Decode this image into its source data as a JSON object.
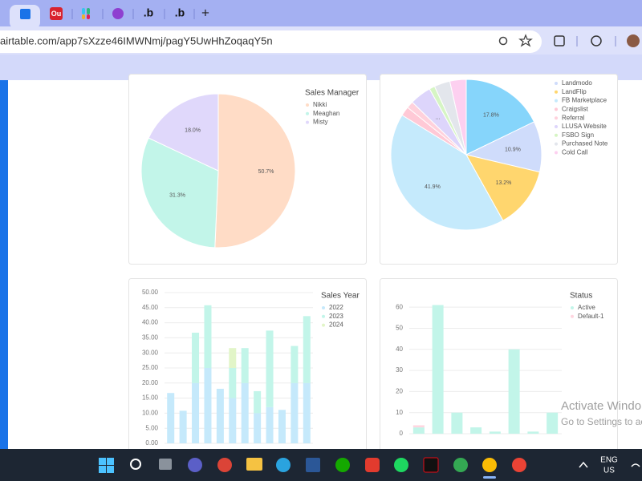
{
  "browser": {
    "tabs": [
      "Ou",
      ".b",
      ".b"
    ],
    "new_tab": "+",
    "url": "airtable.com/app7sXzze46IMWNmj/pagY5UwHhZoqaqY5n"
  },
  "chart_data": [
    {
      "type": "pie",
      "legend_title": "Sales Manager",
      "categories": [
        "Nikki",
        "Meaghan",
        "Misty"
      ],
      "values": [
        50.7,
        31.3,
        18.0
      ],
      "value_labels": [
        "50.7%",
        "31.3%",
        "18.0%"
      ],
      "colors": [
        "#ffdcc6",
        "#c2f5e9",
        "#e0d8fb"
      ]
    },
    {
      "type": "pie",
      "categories": [
        null,
        "Landmodo",
        "LandFlip",
        "FB Marketplace",
        "Craigslist",
        "Referral",
        "LLUSA Website",
        "FSBO Sign",
        "Purchased Note",
        "Cold Call"
      ],
      "values": [
        17.8,
        10.9,
        13.2,
        41.9,
        2.0,
        1.5,
        4.6,
        1.2,
        3.4,
        3.5
      ],
      "value_labels": [
        "17.8%",
        "10.9%",
        "13.2%",
        "41.9%",
        null,
        null,
        "...",
        null,
        null,
        null
      ],
      "colors": [
        "#86d5fb",
        "#cfdcfb",
        "#ffd66e",
        "#c5eafc",
        "#ffc9d6",
        "#ffd1dc",
        "#ddd5fb",
        "#d6f5c4",
        "#e3e6ec",
        "#fdd0f0"
      ]
    },
    {
      "type": "bar",
      "legend_title": "Sales Year",
      "series": [
        {
          "name": "2022",
          "color": "#c5e9fb",
          "values": [
            16.7,
            10.8,
            20.0,
            25.0,
            18.1,
            15.0,
            20.0,
            10.0,
            12.0,
            11.1,
            20.0,
            20.0
          ]
        },
        {
          "name": "2023",
          "color": "#c2f5e9",
          "values": [
            0,
            0,
            16.7,
            20.8,
            0,
            10.0,
            11.6,
            7.3,
            25.4,
            0,
            12.3,
            22.2
          ]
        },
        {
          "name": "2024",
          "color": "#e2f5c8",
          "values": [
            0,
            0,
            0,
            0,
            0,
            6.6,
            0,
            0,
            0,
            0,
            0,
            0
          ]
        }
      ],
      "ylim": [
        0,
        50
      ],
      "yticks": [
        {
          "value": 0,
          "label": "0.00"
        },
        {
          "value": 5,
          "label": "5.00"
        },
        {
          "value": 10,
          "label": "10.00"
        },
        {
          "value": 15,
          "label": "15.00"
        },
        {
          "value": 20,
          "label": "20.00"
        },
        {
          "value": 25,
          "label": "25.00"
        },
        {
          "value": 30,
          "label": "30.00"
        },
        {
          "value": 35,
          "label": "35.00"
        },
        {
          "value": 40,
          "label": "40.00"
        },
        {
          "value": 45,
          "label": "45.00"
        },
        {
          "value": 50,
          "label": "50.00"
        }
      ],
      "grid": true
    },
    {
      "type": "bar",
      "legend_title": "Status",
      "series": [
        {
          "name": "Active",
          "color": "#c2f5e9",
          "values": [
            3,
            61,
            10,
            3,
            1,
            40,
            1,
            10
          ]
        },
        {
          "name": "Default-1",
          "color": "#ffd6e0",
          "values": [
            1,
            0,
            0,
            0,
            0,
            0,
            0,
            0
          ]
        }
      ],
      "ylim": [
        0,
        65
      ],
      "yticks": [
        0,
        10,
        20,
        30,
        40,
        50,
        60
      ],
      "grid": true
    }
  ],
  "watermark": {
    "title": "Activate Windo",
    "subtitle": "Go to Settings to ac"
  },
  "taskbar": {
    "language": "ENG",
    "region": "US"
  }
}
